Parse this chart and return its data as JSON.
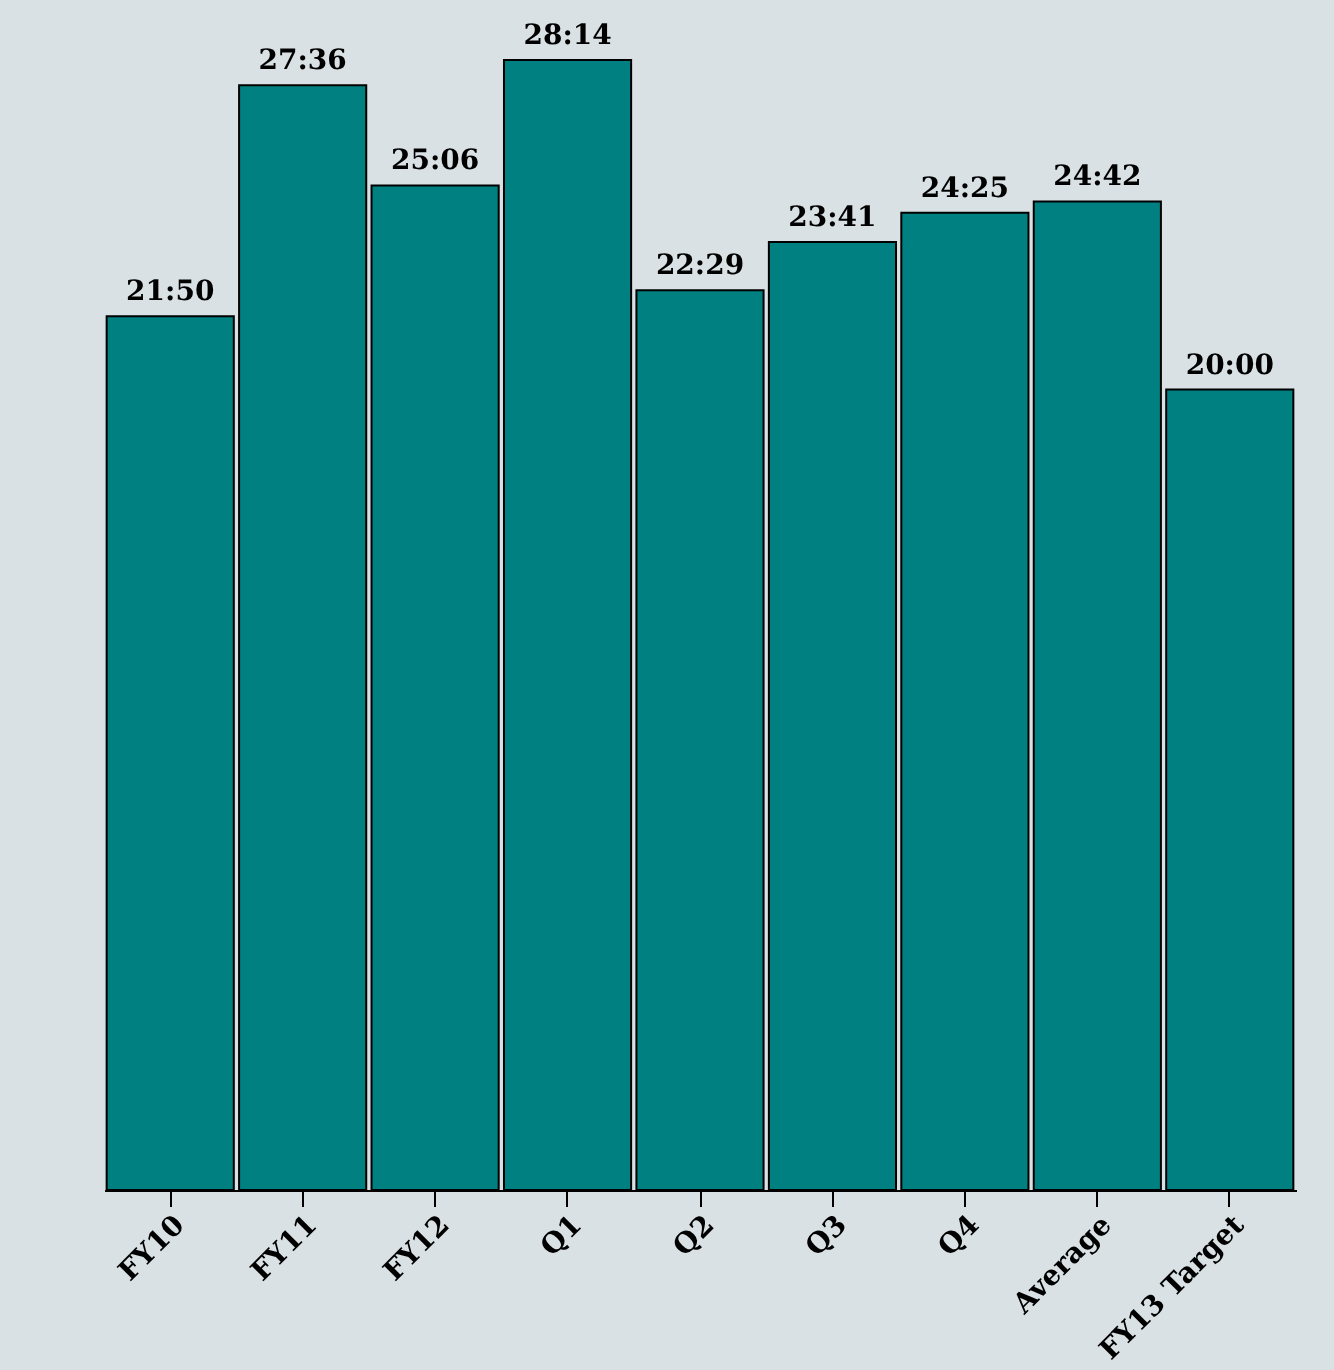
{
  "chart_data": {
    "type": "bar",
    "categories": [
      "FY10",
      "FY11",
      "FY12",
      "Q1",
      "Q2",
      "Q3",
      "Q4",
      "Average",
      "FY13 Target"
    ],
    "values": [
      1310,
      1656,
      1506,
      1694,
      1349,
      1421,
      1465,
      1482,
      1200
    ],
    "value_labels": [
      "21:50",
      "27:36",
      "25:06",
      "28:14",
      "22:29",
      "23:41",
      "24:25",
      "24:42",
      "20:00"
    ],
    "color": "#008080",
    "tick_labels": "x",
    "grid": false
  }
}
